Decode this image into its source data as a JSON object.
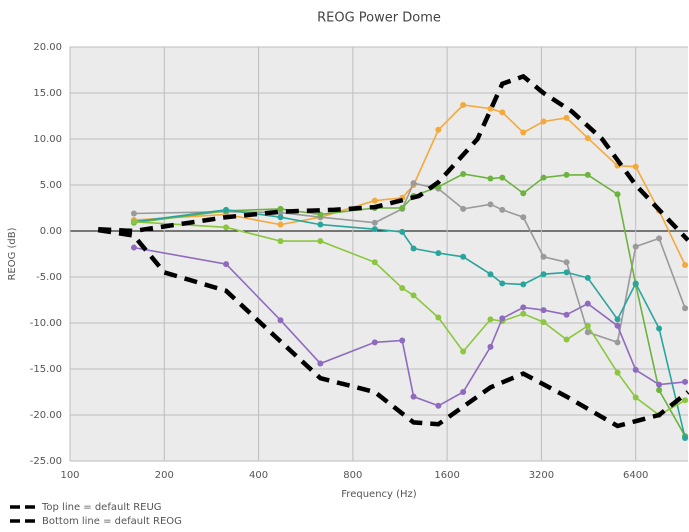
{
  "chart_data": {
    "type": "line",
    "title": "REOG Power Dome",
    "x_label": "Frequency (Hz)",
    "y_label": "REOG (dB)",
    "x_scale": "log",
    "xlim": [
      100,
      9400
    ],
    "xticks": [
      100,
      200,
      400,
      800,
      1600,
      3200,
      6400
    ],
    "ylim": [
      -25,
      20
    ],
    "yticks": [
      {
        "value": -25,
        "label": "-25.00"
      },
      {
        "value": -20,
        "label": "-20.00"
      },
      {
        "value": -15,
        "label": "-15.00"
      },
      {
        "value": -10,
        "label": "-10.00"
      },
      {
        "value": -5,
        "label": "-5.00"
      },
      {
        "value": 0,
        "label": "0.00"
      },
      {
        "value": 5,
        "label": "5.00"
      },
      {
        "value": 10,
        "label": "10.00"
      },
      {
        "value": 15,
        "label": "15.00"
      },
      {
        "value": 20,
        "label": "20.00"
      }
    ],
    "grid": true,
    "legend": "bottom-left",
    "series": [
      {
        "color": "#f5a93a",
        "x": [
          160,
          315,
          470,
          630,
          940,
          1150,
          1250,
          1500,
          1800,
          2200,
          2400,
          2800,
          3250,
          3850,
          4500,
          5600,
          6400,
          7600,
          9200
        ],
        "values": [
          1.2,
          1.8,
          0.7,
          1.5,
          3.3,
          3.6,
          5.0,
          11.0,
          13.7,
          13.3,
          12.9,
          10.7,
          11.9,
          12.3,
          10.1,
          7.1,
          7.0,
          2.2,
          -3.7
        ]
      },
      {
        "color": "#9a9a9a",
        "x": [
          160,
          315,
          470,
          630,
          940,
          1150,
          1250,
          1500,
          1800,
          2200,
          2400,
          2800,
          3250,
          3850,
          4500,
          5600,
          6400,
          7600,
          9200
        ],
        "values": [
          1.9,
          2.1,
          2.0,
          1.5,
          0.9,
          2.4,
          5.2,
          4.6,
          2.4,
          2.9,
          2.3,
          1.5,
          -2.8,
          -3.4,
          -11.0,
          -12.1,
          -1.7,
          -0.8,
          -8.4
        ]
      },
      {
        "color": "#6cb33f",
        "x": [
          160,
          315,
          470,
          630,
          940,
          1150,
          1250,
          1500,
          1800,
          2200,
          2400,
          2800,
          3250,
          3850,
          4500,
          5600,
          6400,
          7600,
          9200
        ],
        "values": [
          0.9,
          2.2,
          2.4,
          1.8,
          2.5,
          2.5,
          3.8,
          4.8,
          6.2,
          5.7,
          5.8,
          4.1,
          5.8,
          6.1,
          6.1,
          4.0,
          -5.8,
          -17.3,
          -22.3
        ]
      },
      {
        "color": "#2aa59c",
        "x": [
          160,
          315,
          470,
          630,
          940,
          1150,
          1250,
          1500,
          1800,
          2200,
          2400,
          2800,
          3250,
          3850,
          4500,
          5600,
          6400,
          7600,
          9200
        ],
        "values": [
          1.0,
          2.3,
          1.5,
          0.7,
          0.2,
          -0.1,
          -1.9,
          -2.4,
          -2.8,
          -4.7,
          -5.7,
          -5.8,
          -4.7,
          -4.5,
          -5.1,
          -9.6,
          -5.7,
          -10.6,
          -22.5
        ]
      },
      {
        "color": "#8cc63f",
        "x": [
          160,
          315,
          470,
          630,
          940,
          1150,
          1250,
          1500,
          1800,
          2200,
          2400,
          2800,
          3250,
          3850,
          4500,
          5600,
          6400,
          7600,
          9200
        ],
        "values": [
          1.0,
          0.4,
          -1.1,
          -1.1,
          -3.4,
          -6.2,
          -7.0,
          -9.4,
          -13.1,
          -9.6,
          -9.8,
          -9.0,
          -9.9,
          -11.8,
          -10.3,
          -15.4,
          -18.1,
          -20.0,
          -18.4
        ]
      },
      {
        "color": "#8e6bbf",
        "x": [
          160,
          315,
          470,
          630,
          940,
          1150,
          1250,
          1500,
          1800,
          2200,
          2400,
          2800,
          3250,
          3850,
          4500,
          5600,
          6400,
          7600,
          9200
        ],
        "values": [
          -1.8,
          -3.6,
          -9.7,
          -14.4,
          -12.1,
          -11.9,
          -18.0,
          -19.0,
          -17.5,
          -12.6,
          -9.5,
          -8.3,
          -8.6,
          -9.1,
          -7.9,
          -10.3,
          -15.1,
          -16.7,
          -16.4
        ]
      },
      {
        "name": "Top line = default REUG",
        "color": "#000000",
        "line_style": "dashed",
        "x": [
          123,
          160,
          315,
          470,
          700,
          940,
          1300,
          1500,
          2000,
          2400,
          2800,
          3250,
          4000,
          5000,
          6400,
          8000,
          9400
        ],
        "values": [
          0.2,
          0.0,
          1.5,
          2.1,
          2.3,
          2.6,
          3.8,
          5.3,
          10.0,
          16.0,
          16.8,
          15.0,
          13.0,
          10.0,
          5.0,
          1.5,
          -1.0
        ]
      },
      {
        "name": "Bottom line = default REOG",
        "color": "#000000",
        "line_style": "dashed",
        "x": [
          123,
          160,
          200,
          315,
          470,
          630,
          940,
          1250,
          1500,
          2200,
          2800,
          3850,
          5600,
          7600,
          9400
        ],
        "values": [
          0.1,
          -0.5,
          -4.5,
          -6.5,
          -12.0,
          -16.0,
          -17.5,
          -20.8,
          -21.0,
          -17.0,
          -15.5,
          -18.0,
          -21.2,
          -20.0,
          -17.5
        ]
      }
    ]
  }
}
